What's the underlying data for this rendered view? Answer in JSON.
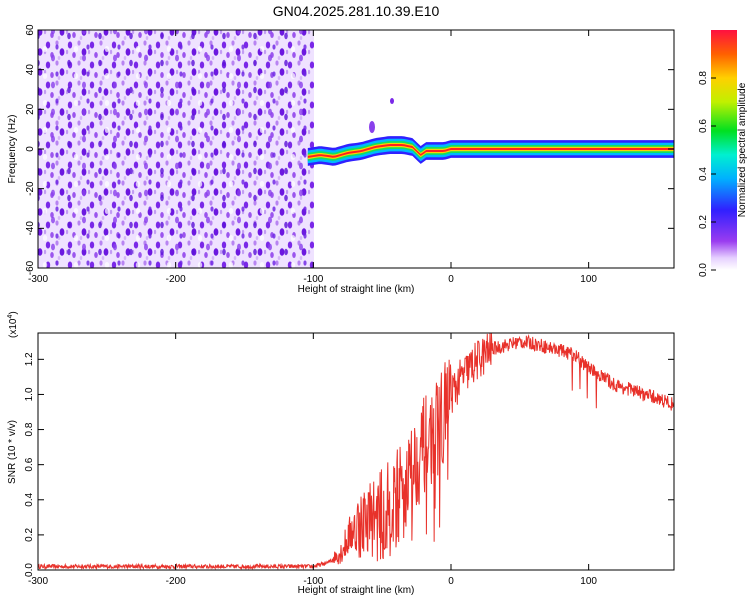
{
  "title": "GN04.2025.281.10.39.E10",
  "chart_data": [
    {
      "type": "heatmap",
      "title": "GN04.2025.281.10.39.E10",
      "xlabel": "Height of straight line (km)",
      "ylabel": "Frequency (Hz)",
      "xlim": [
        -300,
        162
      ],
      "ylim": [
        -60,
        60
      ],
      "xticks": [
        -300,
        -200,
        -100,
        0,
        100
      ],
      "yticks": [
        60,
        40,
        20,
        0,
        -20,
        -40,
        -60
      ],
      "ytick_labels": [
        "60",
        "40",
        "20",
        "0",
        "-20",
        "-40",
        "-60"
      ],
      "noise_region_x": [
        -300,
        -100
      ],
      "signal_trace": {
        "x": [
          -104,
          -95,
          -85,
          -75,
          -65,
          -55,
          -45,
          -35,
          -28,
          -22,
          -18,
          -12,
          -5,
          0,
          20,
          60,
          100,
          162
        ],
        "y": [
          -4,
          -3,
          -4,
          -2,
          -1,
          1,
          2,
          2,
          1,
          -3,
          -1,
          -1,
          -1,
          0,
          0,
          0,
          0,
          0
        ]
      },
      "colorbar": {
        "label": "Normalized spectral amplitude",
        "range": [
          0,
          1
        ],
        "ticks": [
          0.0,
          0.2,
          0.4,
          0.6,
          0.8
        ],
        "tick_labels": [
          "0.0",
          "0.2",
          "0.4",
          "0.6",
          "0.8"
        ]
      },
      "grid": false
    },
    {
      "type": "line",
      "xlabel": "Height of straight line (km)",
      "ylabel": "SNR (10 * v/v)",
      "yscale_label": "(x10",
      "yscale_exponent": "4",
      "xlim": [
        -300,
        162
      ],
      "ylim": [
        0,
        1.35
      ],
      "xticks": [
        -300,
        -200,
        -100,
        0,
        100
      ],
      "yticks": [
        0.0,
        0.2,
        0.4,
        0.6,
        0.8,
        1.0,
        1.2
      ],
      "ytick_labels": [
        "0.0",
        "0.2",
        "0.4",
        "0.6",
        "0.8",
        "1.0",
        "1.2"
      ],
      "series": [
        {
          "name": "SNR",
          "color": "#e8312a",
          "x": [
            -300,
            -250,
            -200,
            -150,
            -100,
            -90,
            -80,
            -70,
            -60,
            -50,
            -40,
            -30,
            -20,
            -10,
            0,
            10,
            20,
            30,
            40,
            50,
            60,
            70,
            80,
            90,
            100,
            110,
            120,
            130,
            140,
            150,
            162
          ],
          "values": [
            0.02,
            0.02,
            0.02,
            0.02,
            0.02,
            0.04,
            0.1,
            0.25,
            0.3,
            0.3,
            0.4,
            0.55,
            0.7,
            0.8,
            1.0,
            1.12,
            1.2,
            1.26,
            1.28,
            1.3,
            1.29,
            1.27,
            1.25,
            1.22,
            1.15,
            1.1,
            1.05,
            1.03,
            1.0,
            0.98,
            0.94
          ]
        }
      ]
    }
  ]
}
